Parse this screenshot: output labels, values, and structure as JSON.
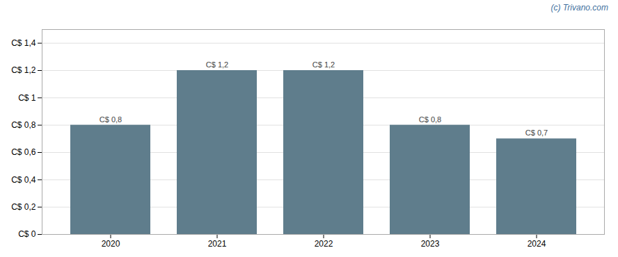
{
  "chart_data": {
    "type": "bar",
    "categories": [
      "2020",
      "2021",
      "2022",
      "2023",
      "2024"
    ],
    "values": [
      0.8,
      1.2,
      1.2,
      0.8,
      0.7
    ],
    "value_labels": [
      "C$ 0,8",
      "C$ 1,2",
      "C$ 1,2",
      "C$ 0,8",
      "C$ 0,7"
    ],
    "data_labels": true,
    "color": "#5f7d8c",
    "ylim": [
      0,
      1.5
    ],
    "yticks": [
      {
        "value": 0,
        "label": "C$ 0"
      },
      {
        "value": 0.2,
        "label": "C$ 0,2"
      },
      {
        "value": 0.4,
        "label": "C$ 0,4"
      },
      {
        "value": 0.6,
        "label": "C$ 0,6"
      },
      {
        "value": 0.8,
        "label": "C$ 0,8"
      },
      {
        "value": 1.0,
        "label": "C$ 1"
      },
      {
        "value": 1.2,
        "label": "C$ 1,2"
      },
      {
        "value": 1.4,
        "label": "C$ 1,4"
      }
    ],
    "grid": true,
    "annotations": [
      "(c) Trivano.com"
    ]
  }
}
